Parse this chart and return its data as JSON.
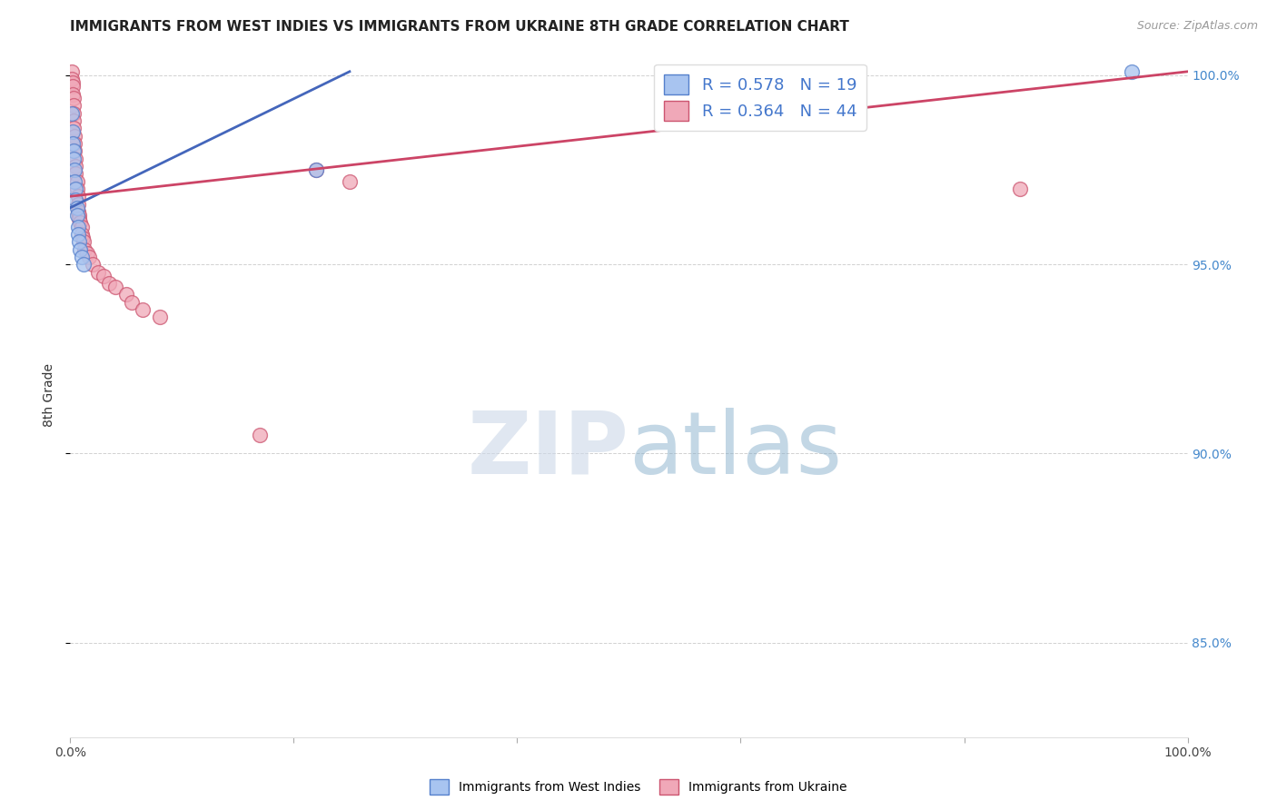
{
  "title": "IMMIGRANTS FROM WEST INDIES VS IMMIGRANTS FROM UKRAINE 8TH GRADE CORRELATION CHART",
  "source": "Source: ZipAtlas.com",
  "ylabel": "8th Grade",
  "legend_blue_R": 0.578,
  "legend_blue_N": 19,
  "legend_pink_R": 0.364,
  "legend_pink_N": 44,
  "blue_color": "#a8c4f0",
  "pink_color": "#f0a8b8",
  "blue_edge_color": "#5580cc",
  "pink_edge_color": "#cc5570",
  "blue_line_color": "#4466bb",
  "pink_line_color": "#cc4466",
  "watermark_zip_color": "#ccd8e8",
  "watermark_atlas_color": "#88b0cc",
  "blue_scatter_x": [
    0.001,
    0.002,
    0.002,
    0.003,
    0.003,
    0.004,
    0.004,
    0.005,
    0.005,
    0.006,
    0.006,
    0.007,
    0.007,
    0.008,
    0.009,
    0.01,
    0.012,
    0.22,
    0.95
  ],
  "blue_scatter_y": [
    0.99,
    0.985,
    0.982,
    0.98,
    0.978,
    0.975,
    0.972,
    0.97,
    0.967,
    0.965,
    0.963,
    0.96,
    0.958,
    0.956,
    0.954,
    0.952,
    0.95,
    0.975,
    1.001
  ],
  "pink_scatter_x": [
    0.001,
    0.001,
    0.002,
    0.002,
    0.002,
    0.003,
    0.003,
    0.003,
    0.003,
    0.003,
    0.004,
    0.004,
    0.004,
    0.005,
    0.005,
    0.005,
    0.006,
    0.006,
    0.007,
    0.007,
    0.007,
    0.008,
    0.008,
    0.009,
    0.01,
    0.01,
    0.011,
    0.012,
    0.013,
    0.015,
    0.017,
    0.02,
    0.025,
    0.03,
    0.035,
    0.04,
    0.05,
    0.055,
    0.065,
    0.08,
    0.17,
    0.22,
    0.25,
    0.85
  ],
  "pink_scatter_y": [
    1.001,
    0.999,
    0.998,
    0.997,
    0.995,
    0.994,
    0.992,
    0.99,
    0.988,
    0.986,
    0.984,
    0.982,
    0.98,
    0.978,
    0.976,
    0.974,
    0.972,
    0.97,
    0.968,
    0.966,
    0.964,
    0.963,
    0.962,
    0.961,
    0.96,
    0.958,
    0.957,
    0.956,
    0.954,
    0.953,
    0.952,
    0.95,
    0.948,
    0.947,
    0.945,
    0.944,
    0.942,
    0.94,
    0.938,
    0.936,
    0.905,
    0.975,
    0.972,
    0.97
  ],
  "xlim": [
    0.0,
    1.0
  ],
  "ylim": [
    0.825,
    1.006
  ],
  "yticks": [
    0.85,
    0.9,
    0.95,
    1.0
  ],
  "ytick_labels": [
    "85.0%",
    "90.0%",
    "95.0%",
    "100.0%"
  ],
  "xticks": [
    0.0,
    0.2,
    0.4,
    0.6,
    0.8,
    1.0
  ],
  "xtick_labels": [
    "0.0%",
    "",
    "",
    "",
    "",
    "100.0%"
  ],
  "blue_trendline_x": [
    0.0,
    0.25
  ],
  "blue_trendline_y": [
    0.965,
    1.001
  ],
  "pink_trendline_x": [
    0.0,
    1.0
  ],
  "pink_trendline_y": [
    0.968,
    1.001
  ]
}
